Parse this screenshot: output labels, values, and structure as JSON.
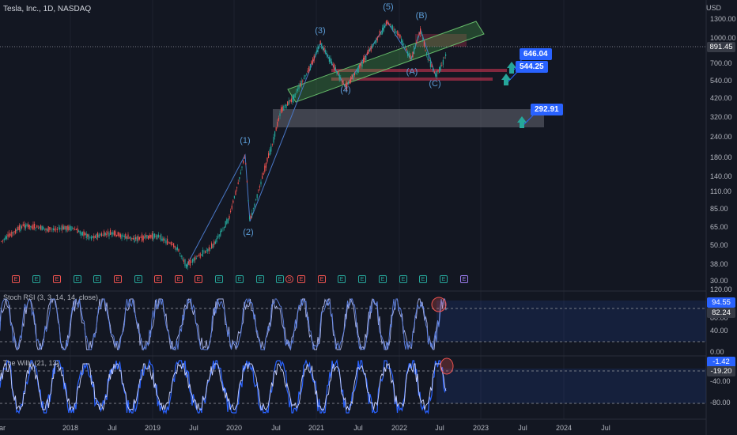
{
  "header": {
    "title": "Tesla, Inc., 1D, NASDAQ",
    "currency": "USD"
  },
  "price_axis": {
    "ticks": [
      "1300.00",
      "1000.00",
      "700.00",
      "540.00",
      "420.00",
      "320.00",
      "240.00",
      "180.00",
      "140.00",
      "110.00",
      "85.00",
      "65.00",
      "50.00",
      "38.00",
      "30.00"
    ],
    "current_price": "891.45"
  },
  "time_axis": [
    "2018",
    "Jul",
    "2019",
    "Jul",
    "2020",
    "Jul",
    "2021",
    "Jul",
    "2022",
    "Jul",
    "2023",
    "Jul",
    "2024",
    "Jul"
  ],
  "edge_label": "ar",
  "waves": [
    "(1)",
    "(2)",
    "(3)",
    "(4)",
    "(5)",
    "(A)",
    "(B)",
    "(C)"
  ],
  "targets": [
    "646.04",
    "544.25",
    "292.91"
  ],
  "earnings": [
    "E",
    "E",
    "E",
    "E",
    "E",
    "E",
    "E",
    "E",
    "E",
    "E",
    "E",
    "E",
    "E",
    "E",
    "E",
    "E",
    "E",
    "E",
    "E",
    "E",
    "E",
    "E",
    "E"
  ],
  "dividend_marker": "S",
  "stoch_rsi": {
    "title": "Stoch RSI (3, 3, 14, 14, close)",
    "ticks": [
      "120.00",
      "80.00",
      "40.00",
      "0.00"
    ],
    "k": "94.55",
    "d": "82.24"
  },
  "willy": {
    "title": "The Willy (21, 13)",
    "ticks": [
      "-40.00",
      "-80.00"
    ],
    "v1": "-1.42",
    "v2": "-19.20"
  },
  "colors": {
    "background": "#131722",
    "accent": "#2962ff",
    "up": "#26a69a",
    "down": "#ef5350",
    "wave_label": "#5b9bd5"
  }
}
